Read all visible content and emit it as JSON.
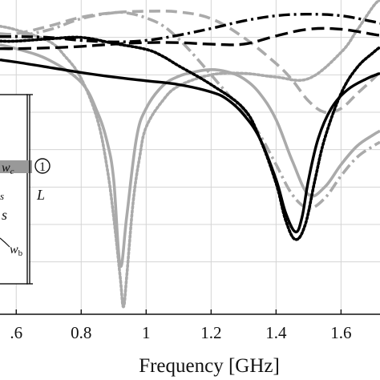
{
  "chart_data": {
    "type": "line",
    "title": "",
    "xlabel": "Frequency [GHz]",
    "ylabel": "",
    "xlim": [
      0.55,
      1.72
    ],
    "ylim": [
      -42,
      0
    ],
    "grid": true,
    "x_ticks": [
      0.6,
      0.8,
      1.0,
      1.2,
      1.4,
      1.6
    ],
    "x_tick_labels": [
      ".6",
      "0.8",
      "1",
      "1.2",
      "1.4",
      "1.6"
    ],
    "series": [
      {
        "style": "black-solid",
        "color": "#000000",
        "dash": "",
        "width": 3.4,
        "x": [
          0.55,
          0.6,
          0.7,
          0.8,
          0.9,
          1.0,
          1.1,
          1.2,
          1.25,
          1.3,
          1.35,
          1.4,
          1.43,
          1.46,
          1.48,
          1.5,
          1.53,
          1.57,
          1.62,
          1.68,
          1.72
        ],
        "y": [
          -8.0,
          -8.3,
          -9.0,
          -9.7,
          -10.3,
          -10.8,
          -11.3,
          -12.3,
          -13.3,
          -15.3,
          -18.5,
          -24.0,
          -28.5,
          -31.0,
          -29.0,
          -24.0,
          -18.5,
          -14.5,
          -12.0,
          -10.5,
          -9.8
        ]
      },
      {
        "style": "black-dotted",
        "color": "#000000",
        "dash": "2.2 2.8",
        "width": 3.6,
        "x": [
          0.55,
          0.6,
          0.7,
          0.8,
          0.9,
          1.0,
          1.05,
          1.1,
          1.2,
          1.3,
          1.35,
          1.4,
          1.43,
          1.46,
          1.49,
          1.52,
          1.55,
          1.6,
          1.65,
          1.7,
          1.72
        ],
        "y": [
          -5.5,
          -5.5,
          -5.2,
          -5.0,
          -5.8,
          -6.6,
          -7.5,
          -8.8,
          -11.3,
          -14.5,
          -18.5,
          -24.5,
          -29.5,
          -32.0,
          -30.0,
          -24.0,
          -18.5,
          -12.5,
          -9.0,
          -7.0,
          -6.3
        ]
      },
      {
        "style": "black-dashed",
        "color": "#000000",
        "dash": "16 7",
        "width": 3.4,
        "x": [
          0.55,
          0.6,
          0.7,
          0.8,
          0.9,
          1.0,
          1.1,
          1.2,
          1.3,
          1.4,
          1.5,
          1.6,
          1.7,
          1.72
        ],
        "y": [
          -6.5,
          -6.5,
          -6.4,
          -6.2,
          -5.9,
          -5.7,
          -5.7,
          -5.9,
          -5.9,
          -4.8,
          -3.9,
          -3.9,
          -4.6,
          -4.7
        ]
      },
      {
        "style": "black-dashdot",
        "color": "#000000",
        "dash": "14 5 3 5",
        "width": 3.4,
        "x": [
          0.55,
          0.6,
          0.7,
          0.8,
          0.9,
          1.0,
          1.1,
          1.2,
          1.3,
          1.4,
          1.5,
          1.6,
          1.7,
          1.72
        ],
        "y": [
          -4.9,
          -4.9,
          -5.0,
          -5.4,
          -5.6,
          -5.4,
          -4.7,
          -3.8,
          -2.8,
          -2.1,
          -1.9,
          -2.1,
          -2.9,
          -3.1
        ]
      },
      {
        "style": "gray-solid",
        "color": "#aaaaaa",
        "dash": "",
        "width": 3.6,
        "x": [
          0.55,
          0.6,
          0.7,
          0.8,
          0.85,
          0.88,
          0.9,
          0.92,
          0.94,
          0.97,
          1.0,
          1.05,
          1.1,
          1.15,
          1.2,
          1.25,
          1.3,
          1.35,
          1.4,
          1.45,
          1.5,
          1.55,
          1.6,
          1.65,
          1.7,
          1.72
        ],
        "y": [
          -6.0,
          -6.5,
          -8.0,
          -11.0,
          -15.0,
          -19.0,
          -24.0,
          -35.5,
          -29.0,
          -18.5,
          -14.5,
          -11.5,
          -10.2,
          -9.6,
          -9.3,
          -9.6,
          -10.5,
          -12.5,
          -16.0,
          -21.5,
          -26.0,
          -25.0,
          -22.0,
          -19.5,
          -18.0,
          -17.5
        ]
      },
      {
        "style": "gray-dotted",
        "color": "#aaaaaa",
        "dash": "2.2 3",
        "width": 3.6,
        "x": [
          0.55,
          0.6,
          0.7,
          0.75,
          0.8,
          0.85,
          0.88,
          0.9,
          0.92,
          0.93,
          0.94,
          0.96,
          0.98,
          1.0,
          1.05,
          1.1,
          1.2,
          1.3,
          1.4,
          1.5,
          1.6,
          1.65,
          1.7,
          1.72
        ],
        "y": [
          -3.5,
          -4.0,
          -5.5,
          -7.5,
          -10.5,
          -16.0,
          -22.5,
          -29.0,
          -37.0,
          -41.0,
          -37.0,
          -27.0,
          -21.0,
          -17.0,
          -13.5,
          -11.5,
          -10.0,
          -9.8,
          -10.3,
          -10.5,
          -7.0,
          -4.0,
          -0.8,
          0.0
        ]
      },
      {
        "style": "gray-dashed",
        "color": "#aaaaaa",
        "dash": "14 7",
        "width": 3.6,
        "x": [
          0.55,
          0.6,
          0.7,
          0.8,
          0.9,
          1.0,
          1.1,
          1.2,
          1.3,
          1.4,
          1.45,
          1.5,
          1.55,
          1.6,
          1.65,
          1.7,
          1.72
        ],
        "y": [
          -4.5,
          -4.5,
          -3.5,
          -2.3,
          -1.7,
          -1.5,
          -1.6,
          -2.5,
          -5.0,
          -8.5,
          -10.7,
          -13.5,
          -15.0,
          -14.5,
          -12.5,
          -10.5,
          -9.5
        ]
      },
      {
        "style": "gray-dashdot",
        "color": "#aaaaaa",
        "dash": "14 5 3 5",
        "width": 3.6,
        "x": [
          0.55,
          0.6,
          0.7,
          0.8,
          0.9,
          0.95,
          1.0,
          1.05,
          1.1,
          1.15,
          1.2,
          1.25,
          1.3,
          1.35,
          1.4,
          1.45,
          1.5,
          1.55,
          1.6,
          1.65,
          1.7,
          1.72
        ],
        "y": [
          -4.8,
          -4.8,
          -4.0,
          -2.5,
          -1.7,
          -1.8,
          -2.4,
          -3.4,
          -5.2,
          -7.5,
          -10.0,
          -12.5,
          -15.0,
          -18.0,
          -22.0,
          -26.0,
          -27.8,
          -26.5,
          -23.5,
          -21.0,
          -19.5,
          -19.0
        ]
      }
    ]
  },
  "inset": {
    "labels": {
      "wc": "w",
      "wc_sub": "c",
      "port": "1",
      "L": "L",
      "s": "s",
      "s_partial": "s",
      "wb": "w",
      "wb_sub": "b"
    }
  }
}
